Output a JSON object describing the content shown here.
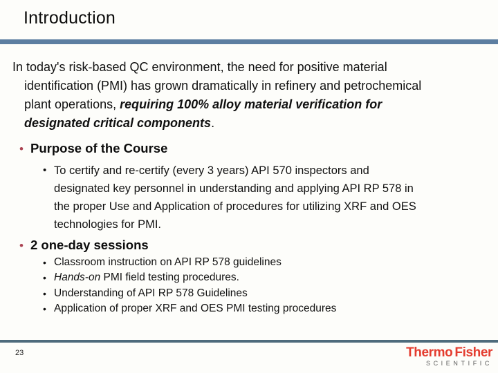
{
  "slide": {
    "title": "Introduction"
  },
  "glyphs": {
    "bullet": "•"
  },
  "colors": {
    "divider_top": "#5d7ea1",
    "divider_bottom": "#4e6b7c",
    "bullet_red": "#ab4453",
    "logo_red": "#e43d30",
    "logo_gray": "#5a5a5a"
  },
  "intro": {
    "line1": "In today's risk-based QC environment, the need for positive material",
    "line2": "identification (PMI) has grown dramatically in refinery and petrochemical",
    "line3_normal": "plant operations, ",
    "line3_emphasis": "requiring 100% alloy material verification for",
    "line4_emphasis": "designated critical components",
    "line4_period": "."
  },
  "purpose": {
    "heading": "Purpose of the Course",
    "lines": [
      "To certify and re-certify (every 3 years) API 570 inspectors and",
      "designated key personnel in understanding and applying API RP 578 in",
      "the proper Use and Application of procedures for utilizing XRF and OES",
      "technologies for PMI."
    ]
  },
  "sessions": {
    "heading": "2 one-day sessions",
    "items": [
      {
        "prefix_italic": "",
        "text": "Classroom instruction on API RP 578 guidelines"
      },
      {
        "prefix_italic": "Hands-on",
        "text": " PMI field testing procedures."
      },
      {
        "prefix_italic": "",
        "text": "Understanding of API RP 578 Guidelines"
      },
      {
        "prefix_italic": "",
        "text": "Application of proper XRF and OES PMI testing procedures"
      }
    ]
  },
  "footer": {
    "page_number": "23",
    "logo": {
      "part1": "Thermo",
      "part2": "Fisher",
      "tagline": "SCIENTIFIC"
    }
  }
}
